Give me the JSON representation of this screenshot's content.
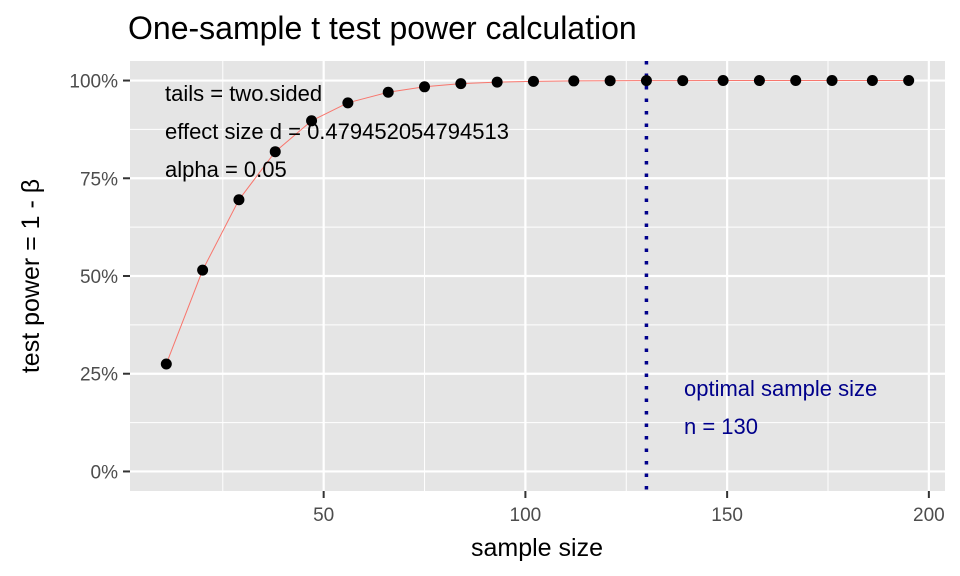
{
  "chart_data": {
    "type": "scatter",
    "title": "One-sample t test power calculation",
    "xlabel": "sample size",
    "ylabel": "test power = 1 - β",
    "xlim": [
      2,
      204
    ],
    "ylim": [
      -0.05,
      1.05
    ],
    "x_ticks": [
      50,
      100,
      150,
      200
    ],
    "x_tick_labels": [
      "50",
      "100",
      "150",
      "200"
    ],
    "y_ticks": [
      0,
      0.25,
      0.5,
      0.75,
      1.0
    ],
    "y_tick_labels": [
      "0%",
      "25%",
      "50%",
      "75%",
      "100%"
    ],
    "grid": true,
    "legend": "none",
    "colors": {
      "panel": "#e5e5e5",
      "grid": "#ffffff",
      "points": "#000000",
      "line": "#f8766d",
      "optimal": "#00008b"
    },
    "series": [
      {
        "x": [
          11,
          20,
          29,
          38,
          47,
          56,
          66,
          75,
          84,
          93,
          102,
          112,
          121,
          130,
          139,
          149,
          158,
          167,
          176,
          186,
          195
        ],
        "y": [
          0.275,
          0.515,
          0.695,
          0.818,
          0.897,
          0.943,
          0.97,
          0.984,
          0.992,
          0.996,
          0.998,
          0.999,
          0.9995,
          0.9998,
          0.9999,
          1.0,
          1.0,
          1.0,
          1.0,
          1.0,
          1.0
        ]
      }
    ],
    "optimal_x": 130,
    "annotations": {
      "tails": "tails = two.sided",
      "effect": "effect size d = 0.479452054794513",
      "alpha": "alpha = 0.05",
      "optimal_label": "optimal sample size",
      "optimal_n": "n = 130"
    }
  }
}
